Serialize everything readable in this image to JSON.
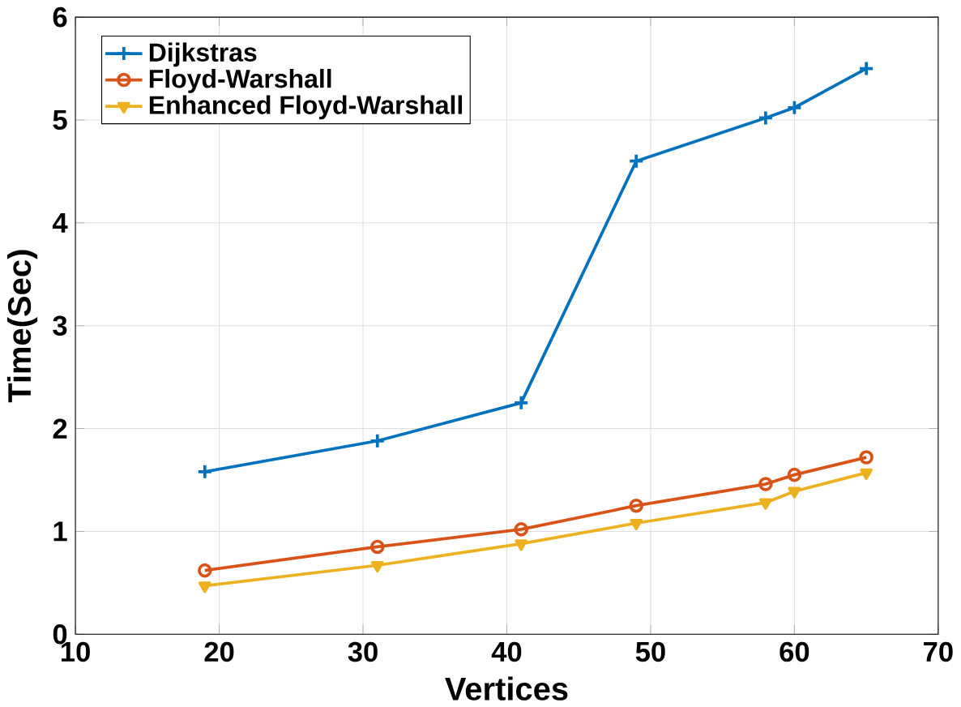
{
  "chart_data": {
    "type": "line",
    "xlabel": "Vertices",
    "ylabel": "Time(Sec)",
    "x": [
      19,
      31,
      41,
      49,
      58,
      60,
      65
    ],
    "series": [
      {
        "name": "Dijkstras",
        "color": "#0072bd",
        "marker": "cross",
        "values": [
          1.58,
          1.88,
          2.25,
          4.6,
          5.02,
          5.12,
          5.5
        ]
      },
      {
        "name": "Floyd-Warshall",
        "color": "#d95319",
        "marker": "circle",
        "values": [
          0.62,
          0.85,
          1.02,
          1.25,
          1.46,
          1.55,
          1.72
        ]
      },
      {
        "name": "Enhanced Floyd-Warshall",
        "color": "#edb120",
        "marker": "triangle",
        "values": [
          0.47,
          0.67,
          0.88,
          1.08,
          1.28,
          1.39,
          1.57
        ]
      }
    ],
    "xlim": [
      10,
      70
    ],
    "ylim": [
      0,
      6
    ],
    "xticks": [
      10,
      20,
      30,
      40,
      50,
      60,
      70
    ],
    "yticks": [
      0,
      1,
      2,
      3,
      4,
      5,
      6
    ],
    "grid": true,
    "legend": "top left",
    "line_style": "solid"
  }
}
